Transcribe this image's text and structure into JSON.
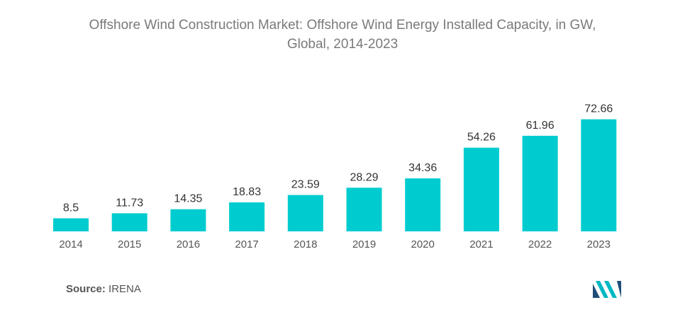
{
  "title_line1": "Offshore Wind Construction Market: Offshore Wind Energy Installed Capacity, in GW,",
  "title_line2": "Global, 2014-2023",
  "source_prefix": "Source:",
  "source_name": "IRENA",
  "brand_logo": "Mordor Intelligence logo",
  "colors": {
    "bar": "#00cccf",
    "title": "#7a7a7a",
    "logo_dark": "#1f4e79",
    "logo_light": "#00b8c4"
  },
  "chart_data": {
    "type": "bar",
    "title": "Offshore Wind Construction Market: Offshore Wind Energy Installed Capacity, in GW, Global, 2014-2023",
    "xlabel": "",
    "ylabel": "",
    "categories": [
      "2014",
      "2015",
      "2016",
      "2017",
      "2018",
      "2019",
      "2020",
      "2021",
      "2022",
      "2023"
    ],
    "values": [
      8.5,
      11.73,
      14.35,
      18.83,
      23.59,
      28.29,
      34.36,
      54.26,
      61.96,
      72.66
    ],
    "value_labels": [
      "8.5",
      "11.73",
      "14.35",
      "18.83",
      "23.59",
      "28.29",
      "34.36",
      "54.26",
      "61.96",
      "72.66"
    ],
    "ylim": [
      0,
      80
    ],
    "grid": false,
    "legend": "none",
    "data_labels": true
  }
}
